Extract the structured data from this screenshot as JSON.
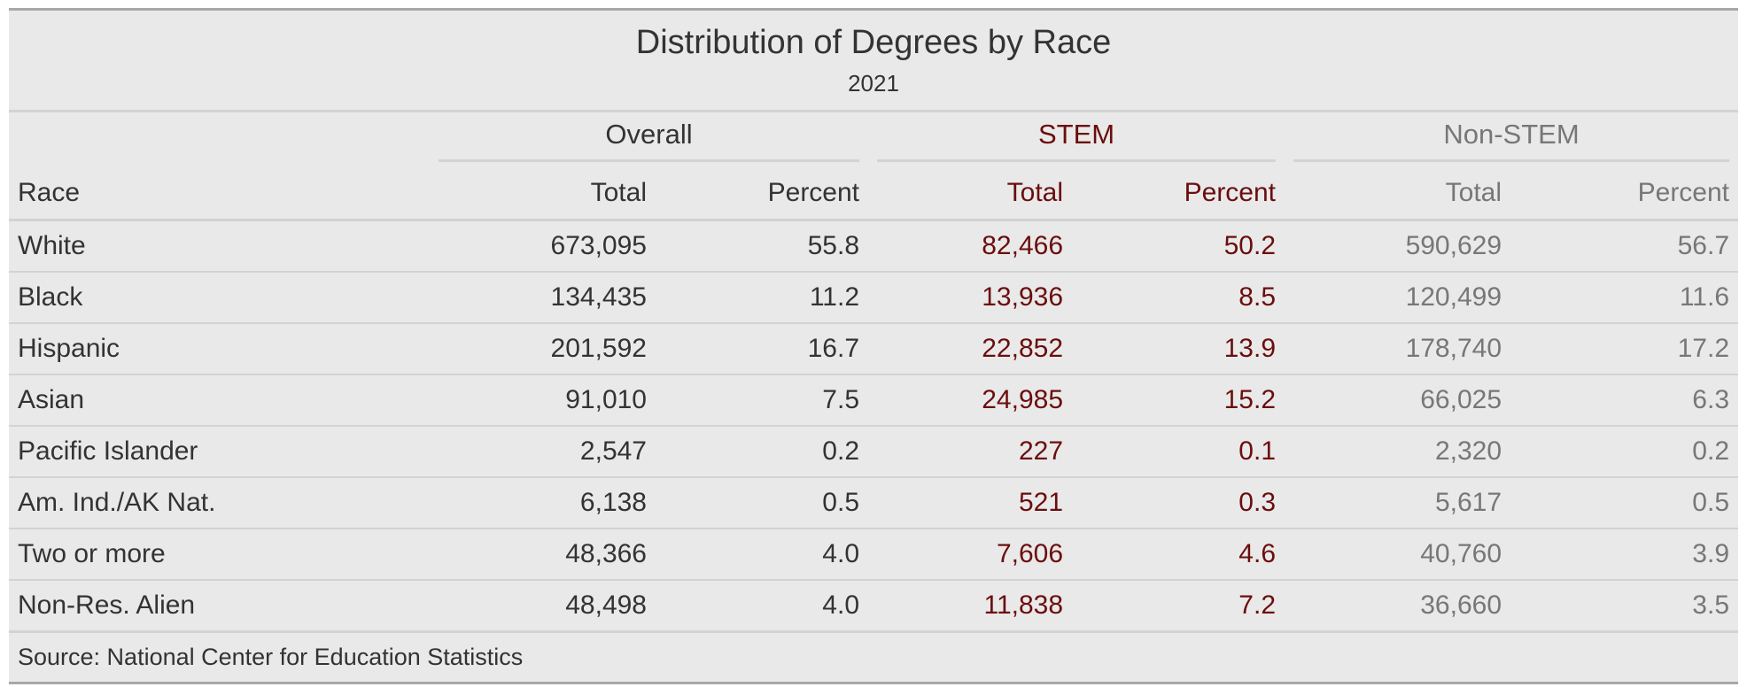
{
  "chart_data": {
    "type": "table",
    "title": "Distribution of Degrees by Race",
    "subtitle": "2021",
    "stub_header": "Race",
    "column_groups": [
      {
        "label": "Overall",
        "columns": [
          "Total",
          "Percent"
        ],
        "color": "#333333"
      },
      {
        "label": "STEM",
        "columns": [
          "Total",
          "Percent"
        ],
        "color": "#6b0d0d"
      },
      {
        "label": "Non-STEM",
        "columns": [
          "Total",
          "Percent"
        ],
        "color": "#777777"
      }
    ],
    "rows": [
      {
        "race": "White",
        "values": [
          "673,095",
          "55.8",
          "82,466",
          "50.2",
          "590,629",
          "56.7"
        ]
      },
      {
        "race": "Black",
        "values": [
          "134,435",
          "11.2",
          "13,936",
          "8.5",
          "120,499",
          "11.6"
        ]
      },
      {
        "race": "Hispanic",
        "values": [
          "201,592",
          "16.7",
          "22,852",
          "13.9",
          "178,740",
          "17.2"
        ]
      },
      {
        "race": "Asian",
        "values": [
          "91,010",
          "7.5",
          "24,985",
          "15.2",
          "66,025",
          "6.3"
        ]
      },
      {
        "race": "Pacific Islander",
        "values": [
          "2,547",
          "0.2",
          "227",
          "0.1",
          "2,320",
          "0.2"
        ]
      },
      {
        "race": "Am. Ind./AK Nat.",
        "values": [
          "6,138",
          "0.5",
          "521",
          "0.3",
          "5,617",
          "0.5"
        ]
      },
      {
        "race": "Two or more",
        "values": [
          "48,366",
          "4.0",
          "7,606",
          "4.6",
          "40,760",
          "3.9"
        ]
      },
      {
        "race": "Non-Res. Alien",
        "values": [
          "48,498",
          "4.0",
          "11,838",
          "7.2",
          "36,660",
          "3.5"
        ]
      }
    ],
    "source_note": "Source: National Center for Education Statistics"
  }
}
